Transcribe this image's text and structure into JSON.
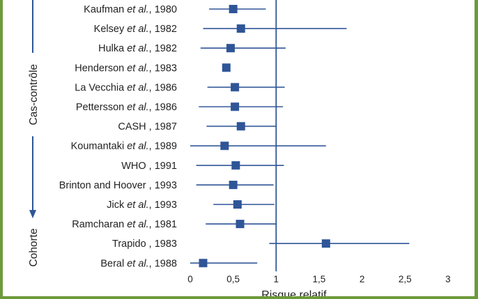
{
  "chart_data": {
    "type": "forest",
    "xlabel": "Risque relatif",
    "xlim": [
      0,
      3
    ],
    "xticks": [
      0,
      0.5,
      1,
      1.5,
      2,
      2.5,
      3
    ],
    "xtick_labels": [
      "0",
      "0,5",
      "1",
      "1,5",
      "2",
      "2,5",
      "3"
    ],
    "reference_line": 1,
    "arrow_label_top": "Cas-contrôle",
    "arrow_label_bottom": "Cohorte",
    "marker_color": "#2f5597",
    "studies": [
      {
        "author": "Kaufman",
        "et_al": true,
        "year": "1980",
        "rr": 0.5,
        "ci_low": 0.22,
        "ci_high": 0.88
      },
      {
        "author": "Kelsey",
        "et_al": true,
        "year": "1982",
        "rr": 0.59,
        "ci_low": 0.15,
        "ci_high": 1.82
      },
      {
        "author": "Hulka",
        "et_al": true,
        "year": "1982",
        "rr": 0.47,
        "ci_low": 0.12,
        "ci_high": 1.11
      },
      {
        "author": "Henderson",
        "et_al": true,
        "year": "1983",
        "rr": 0.42,
        "ci_low": null,
        "ci_high": null
      },
      {
        "author": "La Vecchia",
        "et_al": true,
        "year": "1986",
        "rr": 0.52,
        "ci_low": 0.2,
        "ci_high": 1.1
      },
      {
        "author": "Pettersson",
        "et_al": true,
        "year": "1986",
        "rr": 0.52,
        "ci_low": 0.1,
        "ci_high": 1.08
      },
      {
        "author": "CASH",
        "et_al": false,
        "year": "1987",
        "rr": 0.59,
        "ci_low": 0.19,
        "ci_high": 1.0
      },
      {
        "author": "Koumantaki",
        "et_al": true,
        "year": "1989",
        "rr": 0.4,
        "ci_low": 0.0,
        "ci_high": 1.58
      },
      {
        "author": "WHO",
        "et_al": false,
        "year": "1991",
        "rr": 0.53,
        "ci_low": 0.07,
        "ci_high": 1.09
      },
      {
        "author": "Brinton and Hoover",
        "et_al": false,
        "year": "1993",
        "rr": 0.5,
        "ci_low": 0.07,
        "ci_high": 0.97
      },
      {
        "author": "Jick",
        "et_al": true,
        "year": "1993",
        "rr": 0.55,
        "ci_low": 0.27,
        "ci_high": 0.98
      },
      {
        "author": "Ramcharan",
        "et_al": true,
        "year": "1981",
        "rr": 0.58,
        "ci_low": 0.18,
        "ci_high": 1.0
      },
      {
        "author": "Trapido",
        "et_al": false,
        "year": "1983",
        "rr": 1.58,
        "ci_low": 0.92,
        "ci_high": 2.55
      },
      {
        "author": "Beral",
        "et_al": true,
        "year": "1988",
        "rr": 0.15,
        "ci_low": 0.0,
        "ci_high": 0.78
      }
    ]
  }
}
